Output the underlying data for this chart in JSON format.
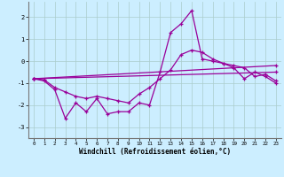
{
  "xlabel": "Windchill (Refroidissement éolien,°C)",
  "background_color": "#cceeff",
  "grid_color": "#aacccc",
  "line_color": "#990099",
  "xlim": [
    -0.5,
    23.5
  ],
  "ylim": [
    -3.5,
    2.7
  ],
  "yticks": [
    -3,
    -2,
    -1,
    0,
    1,
    2
  ],
  "xticks": [
    0,
    1,
    2,
    3,
    4,
    5,
    6,
    7,
    8,
    9,
    10,
    11,
    12,
    13,
    14,
    15,
    16,
    17,
    18,
    19,
    20,
    21,
    22,
    23
  ],
  "series": [
    {
      "x": [
        0,
        1,
        2,
        3,
        4,
        5,
        6,
        7,
        8,
        9,
        10,
        11,
        12,
        13,
        14,
        15,
        16,
        17,
        18,
        19,
        20,
        21,
        22,
        23
      ],
      "y": [
        -0.8,
        -0.9,
        -1.3,
        -2.6,
        -1.9,
        -2.3,
        -1.7,
        -2.4,
        -2.3,
        -2.3,
        -1.9,
        -2.0,
        -0.5,
        1.3,
        1.7,
        2.3,
        0.1,
        0.0,
        -0.1,
        -0.3,
        -0.8,
        -0.5,
        -0.7,
        -1.0
      ]
    },
    {
      "x": [
        0,
        1,
        2,
        3,
        4,
        5,
        6,
        7,
        8,
        9,
        10,
        11,
        12,
        13,
        14,
        15,
        16,
        17,
        18,
        19,
        20,
        21,
        22,
        23
      ],
      "y": [
        -0.8,
        -0.85,
        -1.2,
        -1.4,
        -1.6,
        -1.7,
        -1.6,
        -1.7,
        -1.8,
        -1.9,
        -1.5,
        -1.2,
        -0.8,
        -0.4,
        0.3,
        0.5,
        0.4,
        0.1,
        -0.1,
        -0.2,
        -0.3,
        -0.7,
        -0.6,
        -0.9
      ]
    },
    {
      "x": [
        0,
        23
      ],
      "y": [
        -0.8,
        -0.5
      ]
    },
    {
      "x": [
        0,
        23
      ],
      "y": [
        -0.8,
        -0.2
      ]
    }
  ]
}
